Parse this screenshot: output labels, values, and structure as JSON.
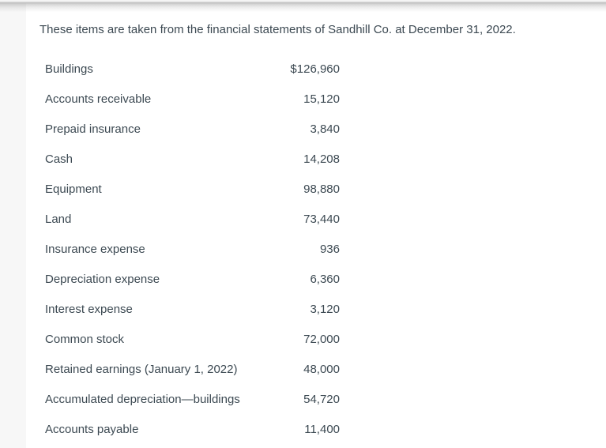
{
  "page": {
    "intro": "These items are taken from the financial statements of Sandhill Co. at December 31, 2022."
  },
  "items": [
    {
      "label": "Buildings",
      "value": "$126,960"
    },
    {
      "label": "Accounts receivable",
      "value": "15,120"
    },
    {
      "label": "Prepaid insurance",
      "value": "3,840"
    },
    {
      "label": "Cash",
      "value": "14,208"
    },
    {
      "label": "Equipment",
      "value": "98,880"
    },
    {
      "label": "Land",
      "value": "73,440"
    },
    {
      "label": "Insurance expense",
      "value": "936"
    },
    {
      "label": "Depreciation expense",
      "value": "6,360"
    },
    {
      "label": "Interest expense",
      "value": "3,120"
    },
    {
      "label": "Common stock",
      "value": "72,000"
    },
    {
      "label": "Retained earnings (January 1, 2022)",
      "value": "48,000"
    },
    {
      "label": "Accumulated depreciation—buildings",
      "value": "54,720"
    },
    {
      "label": "Accounts payable",
      "value": "11,400"
    }
  ],
  "colors": {
    "text": "#3c4952",
    "page_bg": "#ffffff",
    "left_strip_bg": "#f7f7f7",
    "top_edge_line": "#c0c0c0"
  }
}
